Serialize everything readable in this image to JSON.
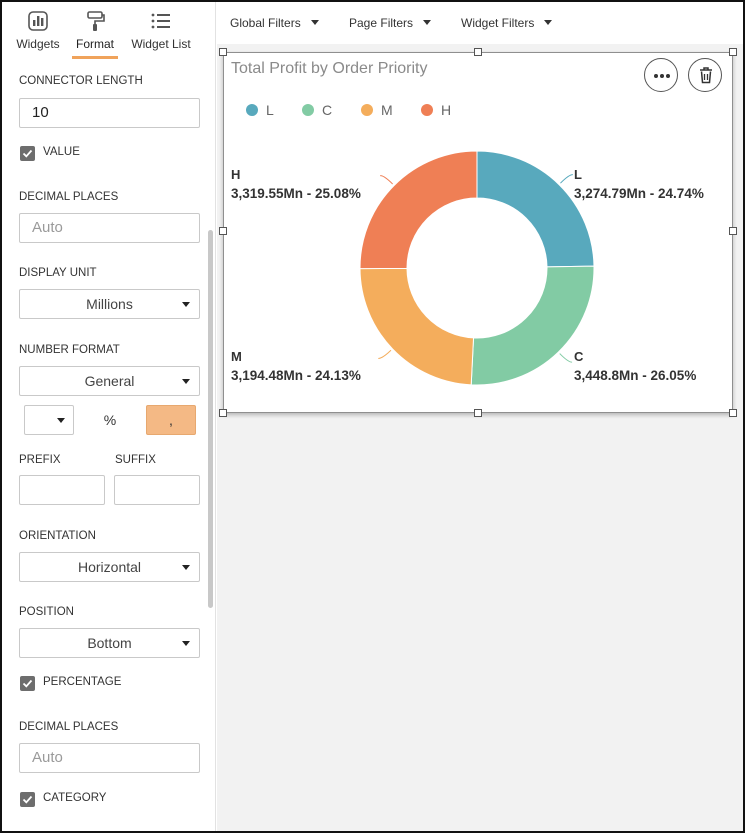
{
  "sidebar": {
    "tabs": [
      {
        "label": "Widgets",
        "icon": "widgets-icon",
        "active": false
      },
      {
        "label": "Format",
        "icon": "paint-roller-icon",
        "active": true
      },
      {
        "label": "Widget List",
        "icon": "list-icon",
        "active": false
      }
    ],
    "accent_color": "#f0a35b",
    "connector_length": {
      "label": "CONNECTOR LENGTH",
      "value": "10"
    },
    "value_checkbox": {
      "label": "VALUE",
      "checked": true
    },
    "value_decimal_places": {
      "label": "DECIMAL PLACES",
      "placeholder": "Auto"
    },
    "display_unit": {
      "label": "DISPLAY UNIT",
      "value": "Millions"
    },
    "number_format": {
      "label": "NUMBER FORMAT",
      "value": "General"
    },
    "symbols": {
      "percent": "%",
      "comma": ","
    },
    "prefix": {
      "label": "PREFIX",
      "value": ""
    },
    "suffix": {
      "label": "SUFFIX",
      "value": ""
    },
    "orientation": {
      "label": "ORIENTATION",
      "value": "Horizontal"
    },
    "position": {
      "label": "POSITION",
      "value": "Bottom"
    },
    "percentage_checkbox": {
      "label": "PERCENTAGE",
      "checked": true
    },
    "percentage_decimal_places": {
      "label": "DECIMAL PLACES",
      "placeholder": "Auto"
    },
    "category_checkbox": {
      "label": "CATEGORY",
      "checked": true
    }
  },
  "filters": [
    {
      "label": "Global Filters"
    },
    {
      "label": "Page Filters"
    },
    {
      "label": "Widget Filters"
    }
  ],
  "widget": {
    "title": "Total Profit by Order Priority",
    "actions": [
      {
        "name": "more-options",
        "icon": "ellipsis-icon"
      },
      {
        "name": "delete",
        "icon": "trash-icon"
      }
    ]
  },
  "chart_data": {
    "type": "pie",
    "variant": "donut",
    "title": "Total Profit by Order Priority",
    "legend_position": "top-left",
    "categories": [
      "L",
      "C",
      "M",
      "H"
    ],
    "values": [
      3274.79,
      3448.8,
      3194.48,
      3319.55
    ],
    "unit": "Mn",
    "percentages": [
      24.74,
      26.05,
      24.13,
      25.08
    ],
    "colors": [
      "#58a9bd",
      "#82cba4",
      "#f4ad5c",
      "#ef7f55"
    ],
    "data_labels": [
      {
        "category": "L",
        "text": "3,274.79Mn - 24.74%"
      },
      {
        "category": "C",
        "text": "3,448.8Mn - 26.05%"
      },
      {
        "category": "M",
        "text": "3,194.48Mn - 24.13%"
      },
      {
        "category": "H",
        "text": "3,319.55Mn - 25.08%"
      }
    ]
  }
}
